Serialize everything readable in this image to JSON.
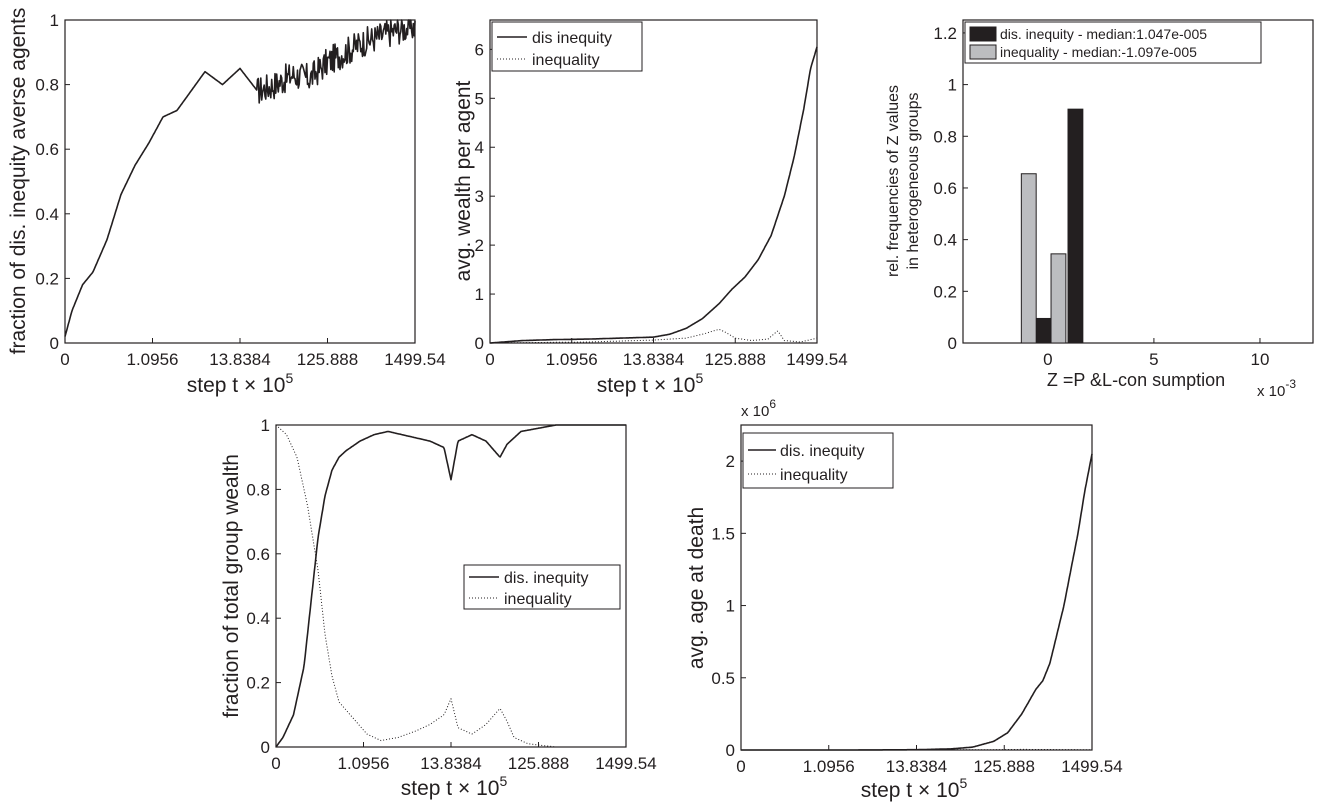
{
  "chart_data": [
    {
      "id": "p1",
      "type": "line",
      "xlabel": "step t",
      "xlabel_suffix": "× 10",
      "xlabel_exp": "5",
      "ylabel": "fraction of dis. inequity averse agents",
      "x_ticks": [
        "0",
        "1.0956",
        "13.8384",
        "125.888",
        "1499.54"
      ],
      "y_ticks": [
        "0",
        "0.2",
        "0.4",
        "0.6",
        "0.8",
        "1"
      ],
      "ylim": [
        0,
        1
      ],
      "grid": false,
      "legend": null,
      "series": [
        {
          "style": "solid",
          "noise": 0.045,
          "noise_start": 0.55,
          "x": [
            0,
            0.02,
            0.05,
            0.08,
            0.12,
            0.16,
            0.2,
            0.24,
            0.28,
            0.32,
            0.36,
            0.4,
            0.45,
            0.5,
            0.55,
            0.6,
            0.65,
            0.7,
            0.75,
            0.8,
            0.85,
            0.9,
            0.95,
            1.0
          ],
          "y": [
            0.02,
            0.1,
            0.18,
            0.22,
            0.32,
            0.46,
            0.55,
            0.62,
            0.7,
            0.72,
            0.78,
            0.84,
            0.8,
            0.85,
            0.78,
            0.8,
            0.83,
            0.82,
            0.87,
            0.9,
            0.93,
            0.95,
            0.97,
            0.98
          ]
        }
      ]
    },
    {
      "id": "p2",
      "type": "line",
      "xlabel": "step t",
      "xlabel_suffix": "× 10",
      "xlabel_exp": "5",
      "ylabel": "avg. wealth per agent",
      "x_ticks": [
        "0",
        "1.0956",
        "13.8384",
        "125.888",
        "1499.54"
      ],
      "y_ticks": [
        "0",
        "1",
        "2",
        "3",
        "4",
        "5",
        "6"
      ],
      "ylim": [
        0,
        6.6
      ],
      "grid": false,
      "legend": {
        "position": "top-left",
        "entries": [
          "dis inequity",
          "inequality"
        ]
      },
      "series": [
        {
          "name": "dis inequity",
          "style": "solid",
          "x": [
            0,
            0.1,
            0.2,
            0.3,
            0.4,
            0.5,
            0.55,
            0.6,
            0.65,
            0.7,
            0.74,
            0.78,
            0.82,
            0.86,
            0.9,
            0.93,
            0.96,
            0.98,
            1.0
          ],
          "y": [
            0.0,
            0.05,
            0.07,
            0.08,
            0.1,
            0.12,
            0.18,
            0.3,
            0.5,
            0.8,
            1.1,
            1.35,
            1.7,
            2.2,
            3.0,
            3.8,
            4.8,
            5.6,
            6.05
          ]
        },
        {
          "name": "inequality",
          "style": "dotted",
          "x": [
            0,
            0.3,
            0.5,
            0.6,
            0.65,
            0.7,
            0.72,
            0.75,
            0.8,
            0.85,
            0.88,
            0.9,
            0.95,
            1.0
          ],
          "y": [
            0.0,
            0.02,
            0.06,
            0.1,
            0.18,
            0.28,
            0.22,
            0.1,
            0.05,
            0.08,
            0.25,
            0.05,
            0.02,
            0.1
          ]
        }
      ]
    },
    {
      "id": "p3",
      "type": "bar",
      "xlabel": "Z =P &L-con sumption",
      "x_mult": "x 10",
      "x_mult_exp": "-3",
      "ylabel": "rel. frequencies of Z values in heterogeneous groups",
      "x_ticks": [
        "0",
        "5",
        "10"
      ],
      "x_tick_values": [
        0,
        5,
        10
      ],
      "xlim": [
        -4,
        12.5
      ],
      "y_ticks": [
        "0",
        "0.2",
        "0.4",
        "0.6",
        "0.8",
        "1",
        "1.2"
      ],
      "ylim": [
        0,
        1.25
      ],
      "grid": false,
      "legend": {
        "position": "top",
        "entries": [
          "dis. inequity - median:1.047e-005",
          "inequality - median:-1.097e-005"
        ]
      },
      "series": [
        {
          "name": "dis. inequity",
          "color": "#231f20",
          "bars": [
            {
              "x": -0.2,
              "value": 0.095
            },
            {
              "x": 1.3,
              "value": 0.905
            }
          ]
        },
        {
          "name": "inequality",
          "color": "#bcbdc0",
          "bars": [
            {
              "x": -0.9,
              "value": 0.655
            },
            {
              "x": 0.5,
              "value": 0.345
            }
          ]
        }
      ],
      "bar_width": 0.7
    },
    {
      "id": "p4",
      "type": "line",
      "xlabel": "step t",
      "xlabel_suffix": "× 10",
      "xlabel_exp": "5",
      "ylabel": "fraction of total group wealth",
      "x_ticks": [
        "0",
        "1.0956",
        "13.8384",
        "125.888",
        "1499.54"
      ],
      "y_ticks": [
        "0",
        "0.2",
        "0.4",
        "0.6",
        "0.8",
        "1"
      ],
      "ylim": [
        0,
        1
      ],
      "grid": false,
      "legend": {
        "position": "center-right",
        "entries": [
          "dis. inequity",
          "inequality"
        ]
      },
      "series": [
        {
          "name": "dis. inequity",
          "style": "solid",
          "x": [
            0,
            0.02,
            0.05,
            0.08,
            0.1,
            0.12,
            0.14,
            0.16,
            0.18,
            0.2,
            0.24,
            0.28,
            0.32,
            0.36,
            0.4,
            0.44,
            0.48,
            0.5,
            0.52,
            0.56,
            0.6,
            0.64,
            0.66,
            0.7,
            0.75,
            0.8,
            0.9,
            1.0
          ],
          "y": [
            0.0,
            0.03,
            0.1,
            0.25,
            0.45,
            0.65,
            0.78,
            0.86,
            0.9,
            0.92,
            0.95,
            0.97,
            0.98,
            0.97,
            0.96,
            0.95,
            0.93,
            0.83,
            0.95,
            0.97,
            0.95,
            0.9,
            0.94,
            0.98,
            0.99,
            1.0,
            1.0,
            1.0
          ]
        },
        {
          "name": "inequality",
          "style": "dotted",
          "x": [
            0,
            0.03,
            0.06,
            0.09,
            0.12,
            0.14,
            0.16,
            0.18,
            0.22,
            0.26,
            0.3,
            0.35,
            0.4,
            0.44,
            0.48,
            0.5,
            0.52,
            0.56,
            0.6,
            0.64,
            0.66,
            0.68,
            0.72,
            0.8,
            0.9,
            1.0
          ],
          "y": [
            1.0,
            0.97,
            0.9,
            0.75,
            0.55,
            0.35,
            0.22,
            0.14,
            0.09,
            0.04,
            0.02,
            0.03,
            0.05,
            0.07,
            0.1,
            0.15,
            0.06,
            0.04,
            0.07,
            0.12,
            0.08,
            0.03,
            0.01,
            0.0,
            0.0,
            0.0
          ]
        }
      ]
    },
    {
      "id": "p5",
      "type": "line",
      "xlabel": "step t",
      "xlabel_suffix": "× 10",
      "xlabel_exp": "5",
      "ylabel": "avg. age at death",
      "y_mult": "x 10",
      "y_mult_exp": "6",
      "x_ticks": [
        "0",
        "1.0956",
        "13.8384",
        "125.888",
        "1499.54"
      ],
      "y_ticks": [
        "0",
        "0.5",
        "1",
        "1.5",
        "2"
      ],
      "ylim": [
        0,
        2.25
      ],
      "grid": false,
      "legend": {
        "position": "top-left",
        "entries": [
          "dis. inequity",
          "inequality"
        ]
      },
      "series": [
        {
          "name": "dis. inequity",
          "style": "solid",
          "x": [
            0,
            0.3,
            0.5,
            0.6,
            0.66,
            0.72,
            0.76,
            0.8,
            0.84,
            0.86,
            0.88,
            0.9,
            0.92,
            0.94,
            0.96,
            0.98,
            1.0
          ],
          "y": [
            0.0,
            0.0,
            0.002,
            0.008,
            0.02,
            0.06,
            0.12,
            0.25,
            0.42,
            0.48,
            0.6,
            0.8,
            1.0,
            1.25,
            1.5,
            1.8,
            2.05
          ]
        },
        {
          "name": "inequality",
          "style": "dotted",
          "x": [
            0,
            0.5,
            0.7,
            0.8,
            0.9,
            1.0
          ],
          "y": [
            0.0,
            0.0,
            0.002,
            0.004,
            0.003,
            0.002
          ]
        }
      ]
    }
  ]
}
